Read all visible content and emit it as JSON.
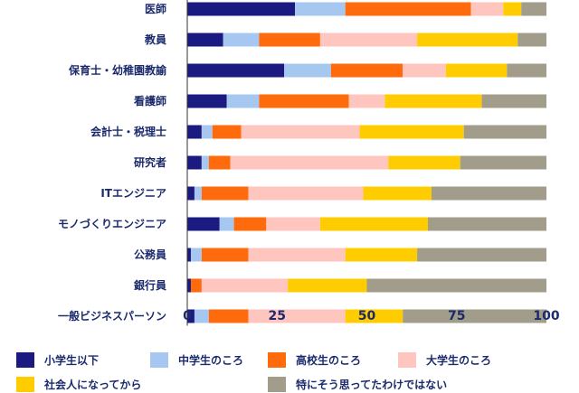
{
  "chart_data": {
    "type": "bar",
    "orientation": "horizontal",
    "stacked": true,
    "categories": [
      "医師",
      "教員",
      "保育士・幼稚園教諭",
      "看護師",
      "会計士・税理士",
      "研究者",
      "ITエンジニア",
      "モノづくりエンジニア",
      "公務員",
      "銀行員",
      "一般ビジネスパーソン"
    ],
    "series": [
      {
        "name": "小学生以下",
        "color": "#1a1a80",
        "values": [
          30,
          10,
          27,
          11,
          4,
          4,
          2,
          9,
          1,
          1,
          2
        ]
      },
      {
        "name": "中学生のころ",
        "color": "#a6c8f0",
        "values": [
          14,
          10,
          13,
          9,
          3,
          2,
          2,
          4,
          3,
          0,
          4
        ]
      },
      {
        "name": "高校生のころ",
        "color": "#ff6a0d",
        "values": [
          35,
          17,
          20,
          25,
          8,
          6,
          13,
          9,
          13,
          3,
          11
        ]
      },
      {
        "name": "大学生のころ",
        "color": "#ffc6c0",
        "values": [
          9,
          27,
          12,
          10,
          33,
          44,
          32,
          15,
          27,
          24,
          27
        ]
      },
      {
        "name": "社会人になってから",
        "color": "#ffcc00",
        "values": [
          5,
          28,
          17,
          27,
          29,
          20,
          19,
          30,
          20,
          22,
          16
        ]
      },
      {
        "name": "特にそう思ってたわけではない",
        "color": "#a19d8a",
        "values": [
          7,
          8,
          11,
          18,
          23,
          24,
          32,
          33,
          36,
          50,
          40
        ]
      }
    ],
    "xlim": [
      0,
      100
    ],
    "xticks": [
      0,
      25,
      50,
      75,
      100
    ],
    "grid": false,
    "legend_position": "bottom"
  }
}
